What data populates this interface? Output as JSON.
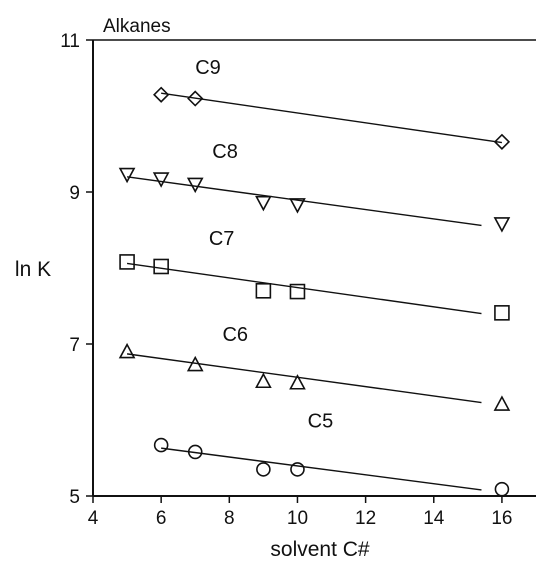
{
  "chart_data": {
    "type": "scatter",
    "title": "Alkanes",
    "xlabel": "solvent C#",
    "ylabel": "ln K",
    "xlim": [
      4,
      17
    ],
    "ylim": [
      5,
      11
    ],
    "xticks": [
      4,
      6,
      8,
      10,
      12,
      14,
      16
    ],
    "yticks": [
      5,
      7,
      9,
      11
    ],
    "grid": false,
    "series": [
      {
        "name": "C9",
        "marker": "diamond",
        "x": [
          6,
          7,
          16
        ],
        "y": [
          10.28,
          10.23,
          9.66
        ],
        "fit": {
          "x": [
            6,
            16
          ],
          "y": [
            10.3,
            9.65
          ]
        }
      },
      {
        "name": "C8",
        "marker": "triangle-down",
        "x": [
          5,
          6,
          7,
          9,
          10,
          16
        ],
        "y": [
          9.23,
          9.17,
          9.1,
          8.86,
          8.83,
          8.58
        ],
        "fit": {
          "x": [
            5,
            15.4
          ],
          "y": [
            9.2,
            8.56
          ]
        }
      },
      {
        "name": "C7",
        "marker": "square",
        "x": [
          5,
          6,
          9,
          10,
          16
        ],
        "y": [
          8.08,
          8.02,
          7.7,
          7.69,
          7.41
        ],
        "fit": {
          "x": [
            5,
            15.4
          ],
          "y": [
            8.06,
            7.4
          ]
        }
      },
      {
        "name": "C6",
        "marker": "triangle-up",
        "x": [
          5,
          7,
          9,
          10,
          16
        ],
        "y": [
          6.9,
          6.73,
          6.51,
          6.49,
          6.21
        ],
        "fit": {
          "x": [
            5,
            15.4
          ],
          "y": [
            6.87,
            6.23
          ]
        }
      },
      {
        "name": "C5",
        "marker": "circle",
        "x": [
          6,
          7,
          9,
          10,
          16
        ],
        "y": [
          5.67,
          5.58,
          5.35,
          5.35,
          5.09
        ],
        "fit": {
          "x": [
            6,
            15.4
          ],
          "y": [
            5.63,
            5.08
          ]
        }
      }
    ]
  }
}
